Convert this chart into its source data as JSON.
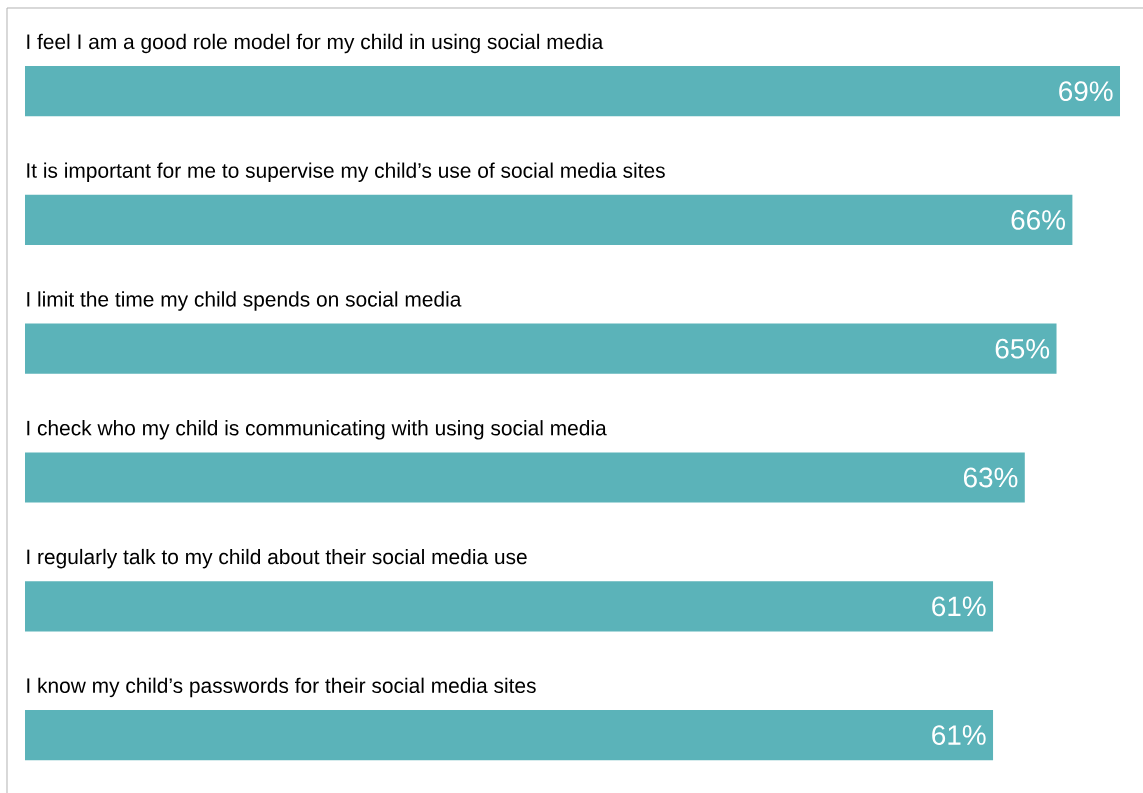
{
  "chart_data": {
    "type": "bar",
    "orientation": "horizontal",
    "categories": [
      "I feel I am a good role model for my child in using social media",
      "It is important for me to supervise my child’s use of social media sites",
      "I limit the time my child spends on social media",
      "I check who my child is communicating with using social media",
      "I regularly talk to my child about their social media use",
      "I know my child’s passwords for their social media sites"
    ],
    "values": [
      69,
      66,
      65,
      63,
      61,
      61
    ],
    "value_labels": [
      "69%",
      "66%",
      "65%",
      "63%",
      "61%",
      "61%"
    ],
    "color": "#5bb3b9"
  }
}
